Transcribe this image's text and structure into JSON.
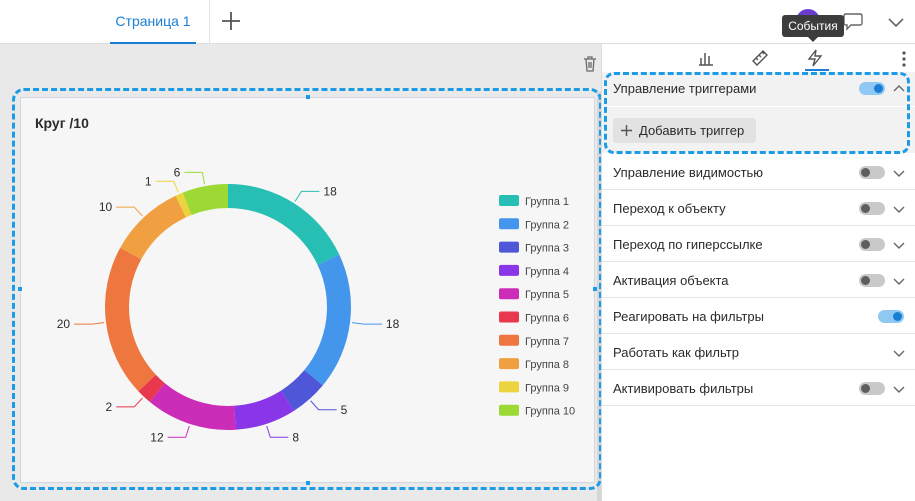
{
  "tabs": [
    {
      "label": "Страница 1"
    }
  ],
  "tooltip": "События",
  "chart_data": {
    "type": "pie",
    "title": "Круг /10",
    "categories": [
      "Группа 1",
      "Группа 2",
      "Группа 3",
      "Группа 4",
      "Группа 5",
      "Группа 6",
      "Группа 7",
      "Группа  8",
      "Группа 9",
      "Группа  10"
    ],
    "values": [
      18,
      18,
      5,
      8,
      12,
      2,
      20,
      10,
      1,
      6
    ],
    "colors": [
      "#27bfb3",
      "#4496ec",
      "#4f56d8",
      "#8836e8",
      "#cc2db8",
      "#e8384e",
      "#ee7740",
      "#f0a040",
      "#ecd43f",
      "#9cd934"
    ],
    "legend": "right",
    "donut": true
  },
  "panel": {
    "sections": [
      {
        "label": "Управление триггерами",
        "toggle": "on",
        "chevron": "up"
      },
      {
        "label": "Управление видимостью",
        "toggle": "off",
        "chevron": "down"
      },
      {
        "label": "Переход к объекту",
        "toggle": "off",
        "chevron": "down"
      },
      {
        "label": "Переход по гиперссылке",
        "toggle": "off",
        "chevron": "down"
      },
      {
        "label": "Активация объекта",
        "toggle": "off",
        "chevron": "down"
      },
      {
        "label": "Реагировать на фильтры",
        "toggle": "on",
        "chevron": "none"
      },
      {
        "label": "Работать как фильтр",
        "toggle": "none",
        "chevron": "down"
      },
      {
        "label": "Активировать фильтры",
        "toggle": "off",
        "chevron": "down"
      }
    ],
    "add_trigger_label": "Добавить триггер"
  },
  "colors": {
    "accent": "#1a7fd4",
    "selection": "#1c9be6"
  }
}
